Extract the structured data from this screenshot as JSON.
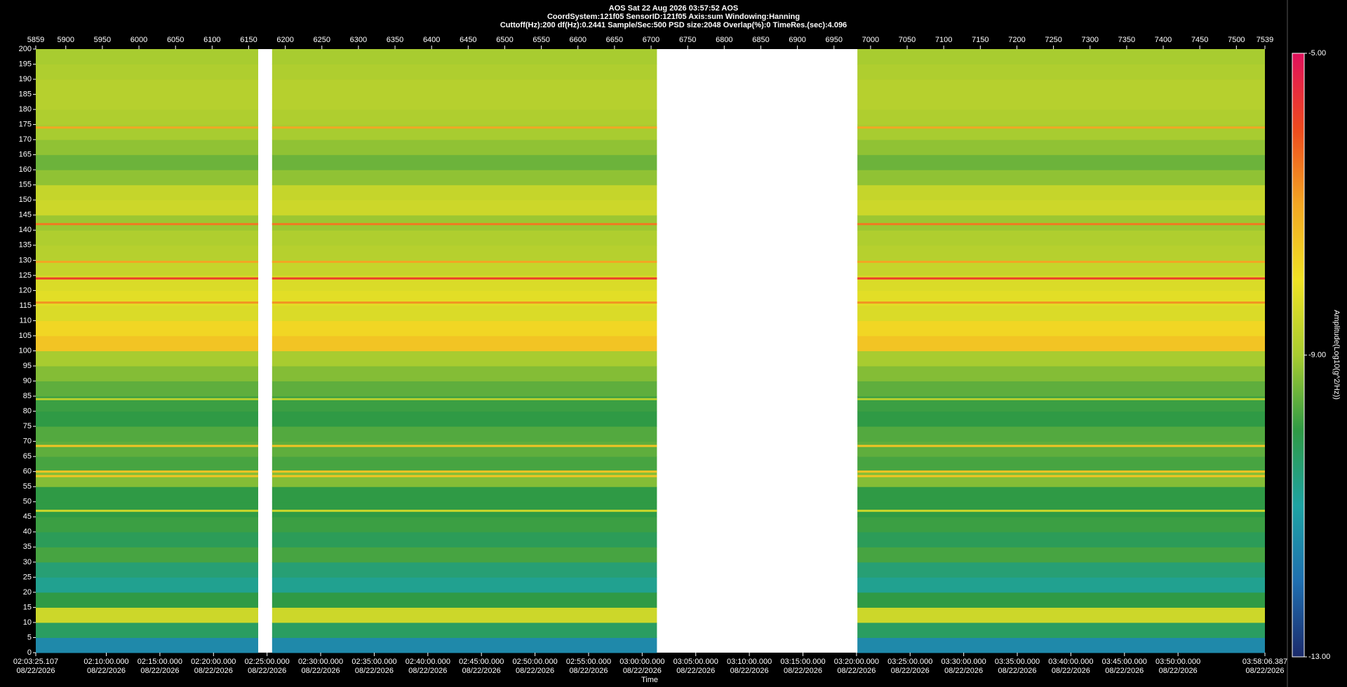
{
  "chart_data": {
    "type": "spectrogram",
    "title": "AOS  Sat 22 Aug 2026 03:57:52  AOS",
    "subtitle": [
      "CoordSystem:121f05   SensorID:121f05   Axis:sum   Windowing:Hanning",
      "Cuttoff(Hz):200    df(Hz):0.2441    Sample/Sec:500    PSD size:2048    Overlap(%):0    TimeRes.(sec):4.096"
    ],
    "xlabel": "Time",
    "colorbar_label": "Amplitude(Log10(g^2/Hz))",
    "xlim": [
      5859,
      7539
    ],
    "xticks": [
      5859,
      5900,
      5950,
      6000,
      6050,
      6100,
      6150,
      6200,
      6250,
      6300,
      6350,
      6400,
      6450,
      6500,
      6550,
      6600,
      6650,
      6700,
      6750,
      6800,
      6850,
      6900,
      6950,
      7000,
      7050,
      7100,
      7150,
      7200,
      7250,
      7300,
      7350,
      7400,
      7450,
      7500,
      7539
    ],
    "time_ticks": [
      {
        "label": "02:03:25.107",
        "date": "08/22/2026"
      },
      {
        "label": "02:10:00.000",
        "date": "08/22/2026"
      },
      {
        "label": "02:15:00.000",
        "date": "08/22/2026"
      },
      {
        "label": "02:20:00.000",
        "date": "08/22/2026"
      },
      {
        "label": "02:25:00.000",
        "date": "08/22/2026"
      },
      {
        "label": "02:30:00.000",
        "date": "08/22/2026"
      },
      {
        "label": "02:35:00.000",
        "date": "08/22/2026"
      },
      {
        "label": "02:40:00.000",
        "date": "08/22/2026"
      },
      {
        "label": "02:45:00.000",
        "date": "08/22/2026"
      },
      {
        "label": "02:50:00.000",
        "date": "08/22/2026"
      },
      {
        "label": "02:55:00.000",
        "date": "08/22/2026"
      },
      {
        "label": "03:00:00.000",
        "date": "08/22/2026"
      },
      {
        "label": "03:05:00.000",
        "date": "08/22/2026"
      },
      {
        "label": "03:10:00.000",
        "date": "08/22/2026"
      },
      {
        "label": "03:15:00.000",
        "date": "08/22/2026"
      },
      {
        "label": "03:20:00.000",
        "date": "08/22/2026"
      },
      {
        "label": "03:25:00.000",
        "date": "08/22/2026"
      },
      {
        "label": "03:30:00.000",
        "date": "08/22/2026"
      },
      {
        "label": "03:35:00.000",
        "date": "08/22/2026"
      },
      {
        "label": "03:40:00.000",
        "date": "08/22/2026"
      },
      {
        "label": "03:45:00.000",
        "date": "08/22/2026"
      },
      {
        "label": "03:50:00.000",
        "date": "08/22/2026"
      },
      {
        "label": "03:58:06.387",
        "date": "08/22/2026"
      }
    ],
    "ylim": [
      0,
      200
    ],
    "yticks": [
      0,
      5,
      10,
      15,
      20,
      25,
      30,
      35,
      40,
      45,
      50,
      55,
      60,
      65,
      70,
      75,
      80,
      85,
      90,
      95,
      100,
      105,
      110,
      115,
      120,
      125,
      130,
      135,
      140,
      145,
      150,
      155,
      160,
      165,
      170,
      175,
      180,
      185,
      190,
      195,
      200
    ],
    "segments": [
      [
        5859,
        6163
      ],
      [
        6182,
        6708
      ],
      [
        6982,
        7539
      ]
    ],
    "band_width": 5,
    "band_values": [
      -11.5,
      -10.3,
      -8.5,
      -10,
      -10.8,
      -10.5,
      -9.8,
      -10.2,
      -9.9,
      -10,
      -10,
      -9.3,
      -9.8,
      -9.6,
      -9.7,
      -10,
      -9.9,
      -9.6,
      -9.3,
      -9,
      -7.5,
      -7.8,
      -8.3,
      -8.2,
      -8.3,
      -8.6,
      -8.8,
      -8.9,
      -9.1,
      -8.5,
      -8.6,
      -9.2,
      -9.5,
      -9.2,
      -9,
      -8.9,
      -8.8,
      -8.8,
      -8.9,
      -9
    ],
    "lines": {
      "freq": [
        174,
        142,
        129.5,
        124,
        116,
        84,
        68.5,
        60,
        58.5,
        47
      ],
      "values": [
        -7,
        -6.5,
        -7,
        -5.8,
        -6.8,
        -8.8,
        -7.5,
        -7.5,
        -7.5,
        -8.5
      ]
    },
    "clim": [
      -13,
      -5
    ],
    "cticks": [
      {
        "value": -5,
        "label": "-5.00"
      },
      {
        "value": -9,
        "label": "-9.00"
      },
      {
        "value": -13,
        "label": "-13.00"
      }
    ],
    "colorscale": [
      {
        "value": -13,
        "color": "#1b2a6b"
      },
      {
        "value": -12,
        "color": "#1f6fb0"
      },
      {
        "value": -11,
        "color": "#1ea3a3"
      },
      {
        "value": -10,
        "color": "#2f9a45"
      },
      {
        "value": -9,
        "color": "#a8cc30"
      },
      {
        "value": -8,
        "color": "#f0e224"
      },
      {
        "value": -7,
        "color": "#f3a623"
      },
      {
        "value": -6,
        "color": "#ee4a1e"
      },
      {
        "value": -5,
        "color": "#e0115c"
      }
    ]
  }
}
